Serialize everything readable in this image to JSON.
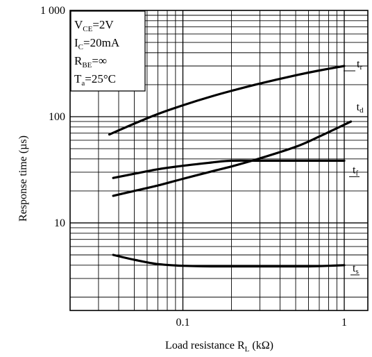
{
  "chart_data": {
    "type": "line",
    "xlabel": "Load resistance R",
    "xlabel_sub": "L",
    "xlabel_unit": " (kΩ)",
    "ylabel": "Response time (µs)",
    "x_scale": "log",
    "y_scale": "log",
    "xlim": [
      0.02,
      1.4
    ],
    "ylim": [
      1.5,
      1000
    ],
    "grid": true,
    "x_ticks": [
      {
        "value": 0.1,
        "label": "0.1"
      },
      {
        "value": 1,
        "label": "1"
      }
    ],
    "y_ticks": [
      {
        "value": 10,
        "label": "10"
      },
      {
        "value": 100,
        "label": "100"
      },
      {
        "value": 1000,
        "label": "1 000"
      }
    ],
    "conditions": [
      {
        "main": "V",
        "sub": "CE",
        "rest": "=2V"
      },
      {
        "main": "I",
        "sub": "C",
        "rest": "=20mA"
      },
      {
        "main": "R",
        "sub": "BE",
        "rest": "=∞"
      },
      {
        "main": "T",
        "sub": "a",
        "rest": "=25°C"
      }
    ],
    "series": [
      {
        "name": "t",
        "sub": "r",
        "points": [
          [
            0.035,
            68
          ],
          [
            0.05,
            86
          ],
          [
            0.07,
            106
          ],
          [
            0.1,
            128
          ],
          [
            0.15,
            155
          ],
          [
            0.2,
            175
          ],
          [
            0.3,
            205
          ],
          [
            0.5,
            245
          ],
          [
            0.7,
            272
          ],
          [
            1.0,
            300
          ]
        ]
      },
      {
        "name": "t",
        "sub": "d",
        "points": [
          [
            0.037,
            18
          ],
          [
            0.05,
            20
          ],
          [
            0.07,
            22.5
          ],
          [
            0.1,
            26
          ],
          [
            0.15,
            30.5
          ],
          [
            0.2,
            34
          ],
          [
            0.3,
            40.5
          ],
          [
            0.5,
            52
          ],
          [
            0.7,
            65
          ],
          [
            1.1,
            90
          ]
        ]
      },
      {
        "name": "t",
        "sub": "f",
        "points": [
          [
            0.037,
            26.5
          ],
          [
            0.05,
            29
          ],
          [
            0.07,
            32
          ],
          [
            0.1,
            34.5
          ],
          [
            0.15,
            37
          ],
          [
            0.2,
            38.5
          ],
          [
            0.3,
            38.5
          ],
          [
            0.5,
            38.5
          ],
          [
            1.0,
            38.5
          ]
        ]
      },
      {
        "name": "t",
        "sub": "s",
        "points": [
          [
            0.037,
            5
          ],
          [
            0.05,
            4.5
          ],
          [
            0.07,
            4.1
          ],
          [
            0.1,
            3.95
          ],
          [
            0.15,
            3.9
          ],
          [
            0.3,
            3.9
          ],
          [
            0.6,
            3.9
          ],
          [
            0.8,
            3.95
          ],
          [
            1.0,
            4.0
          ]
        ]
      }
    ]
  }
}
